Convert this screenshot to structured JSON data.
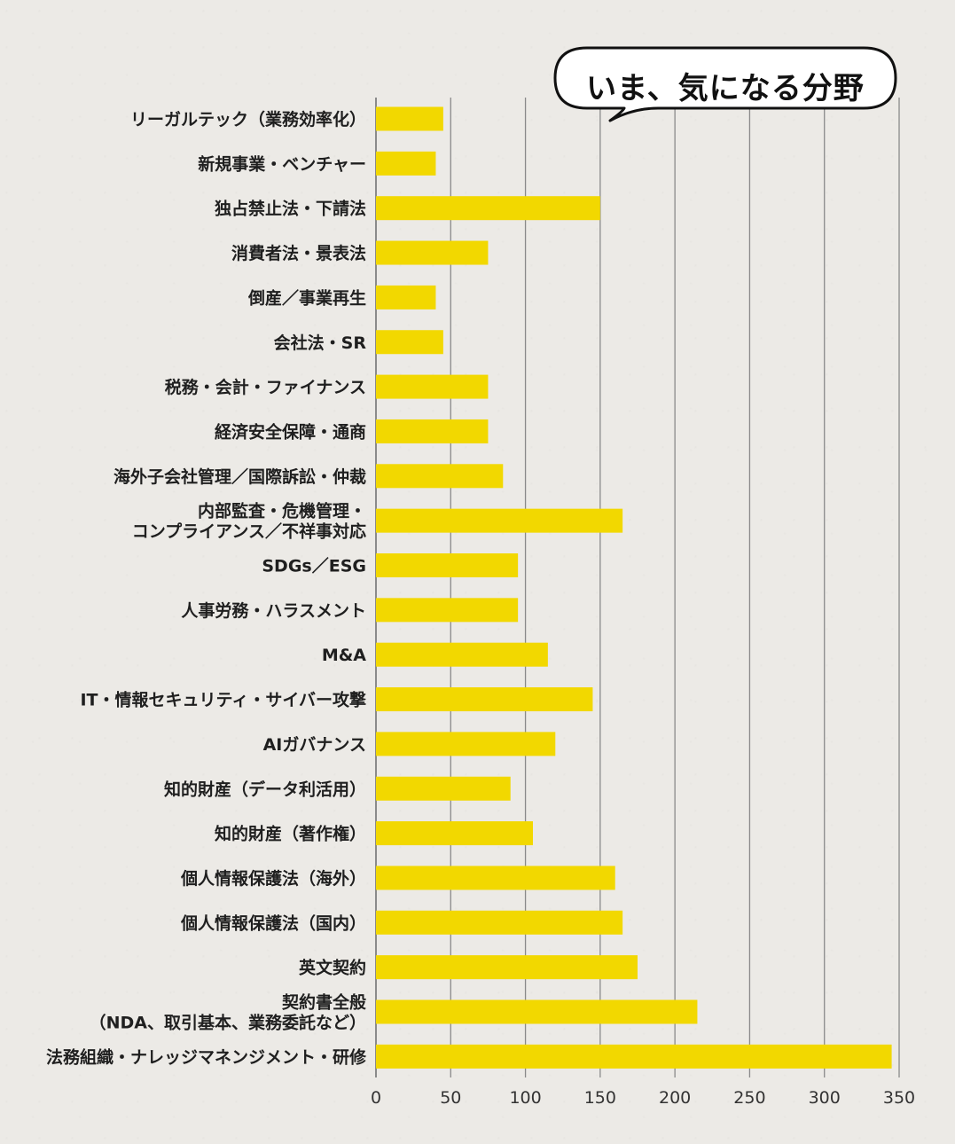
{
  "chart_data": {
    "type": "bar",
    "orientation": "horizontal",
    "title": "いま、気になる分野",
    "categories": [
      "リーガルテック（業務効率化）",
      "新規事業・ベンチャー",
      "独占禁止法・下請法",
      "消費者法・景表法",
      "倒産／事業再生",
      "会社法・SR",
      "税務・会計・ファイナンス",
      "経済安全保障・通商",
      "海外子会社管理／国際訴訟・仲裁",
      "内部監査・危機管理・\nコンプライアンス／不祥事対応",
      "SDGs／ESG",
      "人事労務・ハラスメント",
      "M&A",
      "IT・情報セキュリティ・サイバー攻撃",
      "AIガバナンス",
      "知的財産（データ利活用）",
      "知的財産（著作権）",
      "個人情報保護法（海外）",
      "個人情報保護法（国内）",
      "英文契約",
      "契約書全般\n（NDA、取引基本、業務委託など）",
      "法務組織・ナレッジマネンジメント・研修"
    ],
    "values": [
      45,
      40,
      150,
      75,
      40,
      45,
      75,
      75,
      85,
      165,
      95,
      95,
      115,
      145,
      120,
      90,
      105,
      160,
      165,
      175,
      215,
      345
    ],
    "xlim": [
      0,
      350
    ],
    "xticks": [
      "0",
      "50",
      "100",
      "150",
      "200",
      "250",
      "300",
      "350"
    ],
    "grid": "vertical",
    "bar_color": "#f2d800",
    "grid_color": "#8a8a8a"
  }
}
